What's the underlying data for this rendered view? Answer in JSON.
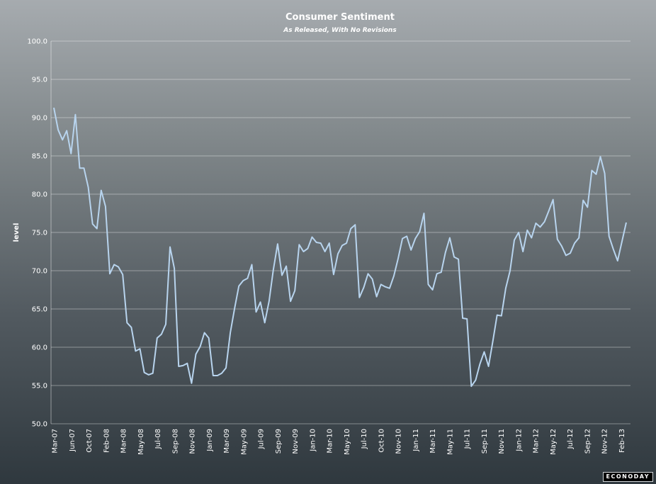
{
  "chart_data": {
    "type": "line",
    "title": "Consumer Sentiment",
    "subtitle": "As Released, With No Revisions",
    "xlabel": "",
    "ylabel": "level",
    "ylim": [
      50,
      100
    ],
    "yticks": [
      "50.0",
      "55.0",
      "60.0",
      "65.0",
      "70.0",
      "75.0",
      "80.0",
      "85.0",
      "90.0",
      "95.0",
      "100.0"
    ],
    "grid": true,
    "line_color": "#b8d4ee",
    "x_tick_labels": [
      "Mar-07",
      "Jun-07",
      "Oct-07",
      "Feb-08",
      "Mar-08",
      "May-08",
      "Jul-08",
      "Sep-08",
      "Nov-08",
      "Jan-09",
      "Mar-09",
      "May-09",
      "Jul-09",
      "Sep-09",
      "Nov-09",
      "Jan-10",
      "Mar-10",
      "May-10",
      "Jul-10",
      "Oct-10",
      "Nov-10",
      "Jan-11",
      "Mar-11",
      "May-11",
      "Jul-11",
      "Sep-11",
      "Nov-11",
      "Jan-12",
      "Mar-12",
      "May-12",
      "Jul-12",
      "Sep-12",
      "Nov-12",
      "Feb-13"
    ],
    "values": [
      91.3,
      88.4,
      87.1,
      88.3,
      85.3,
      90.4,
      83.4,
      83.4,
      80.9,
      76.1,
      75.5,
      80.5,
      78.4,
      69.6,
      70.8,
      70.5,
      69.5,
      63.2,
      62.6,
      59.5,
      59.8,
      56.7,
      56.4,
      56.6,
      61.2,
      61.7,
      63.0,
      73.1,
      70.3,
      57.5,
      57.6,
      57.9,
      55.3,
      59.1,
      60.1,
      61.9,
      61.2,
      56.3,
      56.3,
      56.6,
      57.3,
      61.9,
      65.1,
      68.0,
      68.7,
      69.0,
      70.8,
      64.6,
      65.9,
      63.2,
      66.0,
      70.1,
      73.5,
      69.4,
      70.6,
      66.0,
      67.4,
      73.4,
      72.5,
      72.9,
      74.4,
      73.7,
      73.6,
      72.5,
      73.6,
      69.5,
      72.2,
      73.3,
      73.6,
      75.5,
      76.0,
      66.5,
      67.8,
      69.6,
      68.9,
      66.6,
      68.2,
      67.9,
      67.7,
      69.3,
      71.6,
      74.2,
      74.5,
      72.7,
      74.2,
      75.1,
      77.5,
      68.2,
      67.5,
      69.6,
      69.8,
      72.4,
      74.3,
      71.8,
      71.5,
      63.8,
      63.7,
      54.9,
      55.7,
      57.8,
      59.4,
      57.5,
      60.8,
      64.2,
      64.1,
      67.7,
      70.0,
      74.0,
      75.0,
      72.5,
      75.3,
      74.3,
      76.2,
      75.7,
      76.4,
      77.8,
      79.3,
      74.1,
      73.2,
      72.0,
      72.3,
      73.6,
      74.3,
      79.2,
      78.3,
      83.1,
      82.6,
      84.9,
      82.7,
      74.5,
      72.8,
      71.3,
      73.8,
      76.3
    ]
  },
  "branding": {
    "logo_text": "ECONODAY"
  }
}
